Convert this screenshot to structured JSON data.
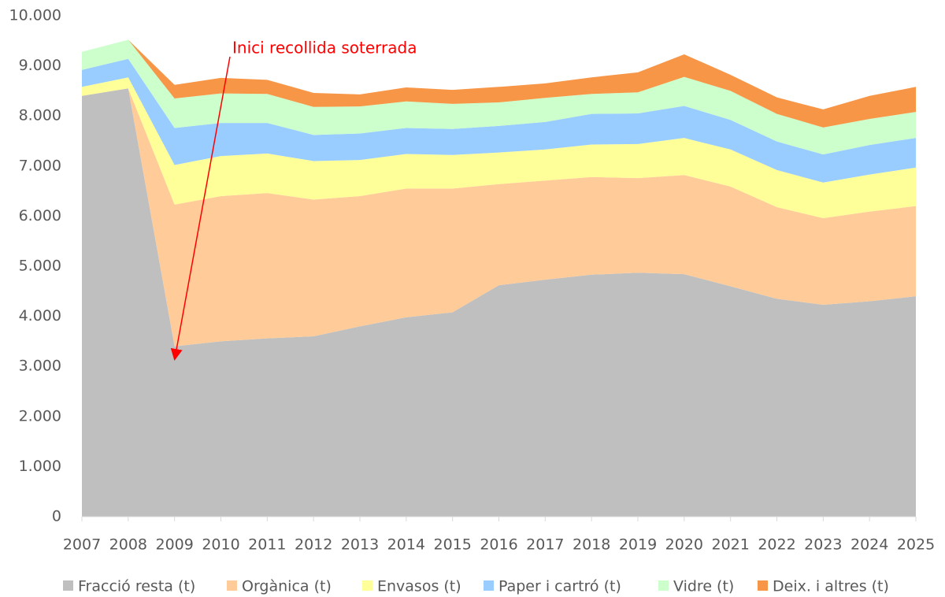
{
  "chart_data": {
    "type": "stacked_area",
    "annotation": "Inici recollida soterrada",
    "categories": [
      "2007",
      "2008",
      "2009",
      "2010",
      "2011",
      "2012",
      "2013",
      "2014",
      "2015",
      "2016",
      "2017",
      "2018",
      "2019",
      "2020",
      "2021",
      "2022",
      "2023",
      "2024",
      "2025"
    ],
    "series": [
      {
        "name": "Fracció resta (t)",
        "color": "#bfbfbf",
        "values": [
          8400,
          8550,
          3400,
          3500,
          3560,
          3600,
          3800,
          3980,
          4080,
          4620,
          4730,
          4830,
          4870,
          4840,
          4600,
          4350,
          4230,
          4300,
          4400
        ]
      },
      {
        "name": "Orgànica (t)",
        "color": "#ffcc99",
        "values": [
          0,
          0,
          2830,
          2900,
          2900,
          2730,
          2600,
          2570,
          2470,
          2020,
          1980,
          1950,
          1890,
          1980,
          1990,
          1830,
          1730,
          1790,
          1800
        ]
      },
      {
        "name": "Envasos (t)",
        "color": "#ffff99",
        "values": [
          180,
          220,
          790,
          800,
          790,
          770,
          720,
          690,
          670,
          630,
          620,
          650,
          680,
          740,
          740,
          740,
          710,
          740,
          770
        ]
      },
      {
        "name": "Paper i cartró (t)",
        "color": "#99ccff",
        "values": [
          340,
          370,
          740,
          660,
          610,
          520,
          530,
          520,
          520,
          530,
          550,
          610,
          610,
          640,
          590,
          570,
          560,
          590,
          590
        ]
      },
      {
        "name": "Vidre (t)",
        "color": "#ccffcc",
        "values": [
          360,
          380,
          590,
          590,
          580,
          560,
          540,
          530,
          500,
          470,
          480,
          400,
          420,
          580,
          580,
          550,
          540,
          520,
          520
        ]
      },
      {
        "name": "Deix. i altres (t)",
        "color": "#f79646",
        "values": [
          0,
          0,
          270,
          310,
          280,
          280,
          240,
          280,
          280,
          310,
          290,
          330,
          400,
          450,
          320,
          330,
          360,
          460,
          500
        ]
      }
    ],
    "ylim": [
      0,
      10000
    ],
    "yticks": [
      0,
      {
        "value": 1000,
        "label": "1.000"
      },
      {
        "value": 2000,
        "label": "2.000"
      },
      {
        "value": 3000,
        "label": "3.000"
      },
      {
        "value": 4000,
        "label": "4.000"
      },
      {
        "value": 5000,
        "label": "5.000"
      },
      {
        "value": 6000,
        "label": "6.000"
      },
      {
        "value": 7000,
        "label": "7.000"
      },
      {
        "value": 8000,
        "label": "8.000"
      },
      {
        "value": 9000,
        "label": "9.000"
      },
      {
        "value": 10000,
        "label": "10.000"
      }
    ],
    "grid": false,
    "legend": "bottom"
  }
}
